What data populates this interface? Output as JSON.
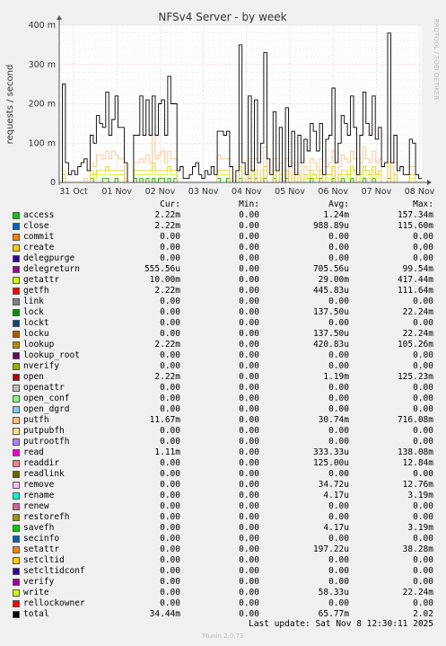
{
  "chart_data": {
    "type": "line",
    "title": "NFSv4 Server - by week",
    "ylabel": "requests / second",
    "watermark": "RRDTOOL / TOBI OETIKER",
    "y_ticks": [
      "0",
      "100 m",
      "200 m",
      "300 m",
      "400 m"
    ],
    "ylim": [
      0,
      0.4
    ],
    "x_ticks": [
      "31 Oct",
      "01 Nov",
      "02 Nov",
      "03 Nov",
      "04 Nov",
      "05 Nov",
      "06 Nov",
      "07 Nov",
      "08 Nov"
    ],
    "grid": true,
    "series": [
      {
        "name": "total",
        "color": "#000000",
        "values": [
          0,
          0.25,
          0.05,
          0.02,
          0.03,
          0.02,
          0.04,
          0.05,
          0.06,
          0.03,
          0.12,
          0.1,
          0.17,
          0.15,
          0.14,
          0.23,
          0.12,
          0.16,
          0.22,
          0.14,
          0.14,
          0.05,
          0,
          0,
          0.12,
          0.12,
          0.22,
          0.12,
          0.21,
          0.12,
          0.22,
          0.12,
          0.2,
          0.21,
          0.12,
          0.27,
          0.2,
          0.2,
          0.03,
          0.04,
          0.01,
          0.01,
          0.02,
          0.04,
          0.05,
          0.02,
          0.01,
          0.03,
          0.02,
          0.04,
          0.02,
          0.13,
          0.13,
          0.12,
          0.13,
          0.04,
          0,
          0.03,
          0.35,
          0.05,
          0.02,
          0.22,
          0.03,
          0.21,
          0.05,
          0.1,
          0.33,
          0.06,
          0.02,
          0.18,
          0.03,
          0.14,
          0,
          0.19,
          0.04,
          0.13,
          0.02,
          0.12,
          0.05,
          0.11,
          0.08,
          0.15,
          0.13,
          0.08,
          0.15,
          0.02,
          0.11,
          0.12,
          0.24,
          0.05,
          0.1,
          0.17,
          0.15,
          0.12,
          0.22,
          0.14,
          0.02,
          0.12,
          0.23,
          0.15,
          0.12,
          0.22,
          0.11,
          0.14,
          0.04,
          0.05,
          0.38,
          0.05,
          0.12,
          0.03,
          0.04,
          0.02,
          0.02,
          0.11,
          0.1,
          0.02,
          0.01
        ]
      },
      {
        "name": "putfh",
        "color": "#f8bd7d",
        "values": [
          0,
          0.03,
          0,
          0,
          0,
          0,
          0,
          0,
          0.01,
          0,
          0.05,
          0.04,
          0.07,
          0.07,
          0.06,
          0.08,
          0.06,
          0.08,
          0.07,
          0.06,
          0.06,
          0.01,
          0,
          0,
          0.05,
          0.05,
          0.06,
          0.05,
          0.07,
          0.05,
          0.12,
          0.06,
          0.07,
          0.08,
          0.05,
          0.08,
          0.06,
          0.06,
          0,
          0,
          0,
          0,
          0,
          0,
          0,
          0,
          0,
          0,
          0,
          0,
          0,
          0.07,
          0.06,
          0.06,
          0.06,
          0.01,
          0,
          0,
          0.1,
          0.01,
          0,
          0.06,
          0,
          0.06,
          0,
          0.03,
          0.09,
          0,
          0,
          0.06,
          0,
          0.05,
          0,
          0.06,
          0,
          0.05,
          0,
          0.05,
          0,
          0.04,
          0.03,
          0.06,
          0.05,
          0.03,
          0.06,
          0,
          0.04,
          0.05,
          0.08,
          0,
          0.04,
          0.07,
          0.06,
          0.05,
          0.08,
          0.06,
          0,
          0.05,
          0.09,
          0.06,
          0.05,
          0.08,
          0.05,
          0.06,
          0,
          0,
          0.11,
          0,
          0.05,
          0,
          0,
          0,
          0,
          0.04,
          0.04,
          0,
          0
        ]
      },
      {
        "name": "lookup",
        "color": "#dec503",
        "values": [
          0,
          0.02,
          0,
          0,
          0,
          0,
          0,
          0,
          0,
          0,
          0.03,
          0.02,
          0.03,
          0.03,
          0.03,
          0.04,
          0.03,
          0.03,
          0.03,
          0.03,
          0.03,
          0,
          0,
          0,
          0.03,
          0.03,
          0.03,
          0.03,
          0.03,
          0.03,
          0.05,
          0.03,
          0.03,
          0.03,
          0.03,
          0.04,
          0.03,
          0.03,
          0,
          0,
          0,
          0,
          0,
          0,
          0,
          0,
          0,
          0,
          0,
          0,
          0,
          0.03,
          0.03,
          0.03,
          0.03,
          0,
          0,
          0,
          0.04,
          0,
          0,
          0.03,
          0,
          0.03,
          0,
          0.01,
          0.04,
          0,
          0,
          0.03,
          0,
          0.02,
          0,
          0.03,
          0,
          0.02,
          0,
          0.02,
          0,
          0.02,
          0.01,
          0.03,
          0.02,
          0.01,
          0.03,
          0,
          0.02,
          0.02,
          0.04,
          0,
          0.02,
          0.03,
          0.03,
          0.02,
          0.04,
          0.03,
          0,
          0.02,
          0.04,
          0.03,
          0.02,
          0.04,
          0.02,
          0.03,
          0,
          0,
          0.05,
          0,
          0.02,
          0,
          0,
          0,
          0,
          0.02,
          0.02,
          0,
          0
        ]
      },
      {
        "name": "getattr",
        "color": "#ccff00",
        "values": [
          0,
          0.01,
          0,
          0,
          0,
          0,
          0,
          0,
          0,
          0,
          0.02,
          0.01,
          0.02,
          0.02,
          0.02,
          0.03,
          0.02,
          0.02,
          0.02,
          0.02,
          0.02,
          0,
          0,
          0,
          0.02,
          0.02,
          0.02,
          0.02,
          0.02,
          0.02,
          0.03,
          0.02,
          0.02,
          0.02,
          0.02,
          0.03,
          0.02,
          0.02,
          0,
          0,
          0,
          0,
          0,
          0,
          0,
          0,
          0,
          0,
          0,
          0,
          0,
          0.02,
          0.02,
          0.02,
          0.02,
          0,
          0,
          0,
          0.03,
          0,
          0,
          0.02,
          0,
          0.02,
          0,
          0.01,
          0.03,
          0,
          0,
          0.02,
          0,
          0.01,
          0,
          0.02,
          0,
          0.01,
          0,
          0.01,
          0,
          0.01,
          0.01,
          0.02,
          0.01,
          0.01,
          0.02,
          0,
          0.01,
          0.01,
          0.03,
          0,
          0.01,
          0.02,
          0.02,
          0.01,
          0.03,
          0.02,
          0,
          0.01,
          0.03,
          0.02,
          0.01,
          0.03,
          0.01,
          0.02,
          0,
          0,
          0.04,
          0,
          0.01,
          0,
          0,
          0,
          0,
          0.01,
          0.01,
          0,
          0
        ]
      },
      {
        "name": "access",
        "color": "#00cc00",
        "values": [
          0,
          0.01,
          0,
          0,
          0,
          0,
          0,
          0,
          0,
          0,
          0.01,
          0,
          0,
          0,
          0.01,
          0.01,
          0,
          0,
          0.01,
          0,
          0,
          0,
          0,
          0,
          0.01,
          0,
          0.01,
          0,
          0.01,
          0,
          0.01,
          0,
          0.01,
          0.01,
          0,
          0.01,
          0,
          0.01,
          0,
          0,
          0,
          0,
          0,
          0,
          0,
          0,
          0,
          0,
          0,
          0,
          0,
          0.01,
          0,
          0,
          0.01,
          0,
          0,
          0,
          0.01,
          0,
          0,
          0.01,
          0,
          0.01,
          0,
          0,
          0.01,
          0,
          0,
          0.01,
          0,
          0,
          0,
          0.01,
          0,
          0,
          0,
          0,
          0,
          0,
          0,
          0.01,
          0,
          0,
          0.01,
          0,
          0,
          0,
          0.01,
          0,
          0,
          0.01,
          0,
          0,
          0.01,
          0,
          0,
          0,
          0.01,
          0,
          0,
          0.01,
          0,
          0,
          0,
          0,
          0.01,
          0,
          0,
          0,
          0,
          0,
          0,
          0,
          0,
          0,
          0
        ]
      },
      {
        "name": "open",
        "color": "#cc0000",
        "values": [
          0,
          0.01,
          0,
          0,
          0,
          0,
          0,
          0,
          0,
          0,
          0.01,
          0,
          0,
          0,
          0.01,
          0.01,
          0,
          0,
          0.01,
          0,
          0,
          0,
          0,
          0,
          0.01,
          0,
          0.01,
          0,
          0.01,
          0,
          0.01,
          0,
          0.01,
          0.01,
          0,
          0.01,
          0,
          0.01,
          0,
          0,
          0,
          0,
          0,
          0,
          0,
          0,
          0,
          0,
          0,
          0,
          0,
          0.01,
          0,
          0,
          0.01,
          0,
          0,
          0,
          0.01,
          0,
          0,
          0.01,
          0,
          0.01,
          0,
          0,
          0.01,
          0,
          0,
          0.01,
          0,
          0,
          0,
          0.01,
          0,
          0,
          0,
          0,
          0,
          0,
          0,
          0.01,
          0,
          0,
          0.01,
          0,
          0,
          0,
          0.01,
          0,
          0,
          0.01,
          0,
          0,
          0.01,
          0,
          0,
          0,
          0.01,
          0,
          0,
          0.01,
          0,
          0,
          0,
          0,
          0.01,
          0,
          0,
          0,
          0,
          0,
          0,
          0,
          0,
          0,
          0
        ]
      }
    ]
  },
  "legend": {
    "headers": {
      "cur": "Cur:",
      "min": "Min:",
      "avg": "Avg:",
      "max": "Max:"
    },
    "rows": [
      {
        "name": "access",
        "color": "#00cc00",
        "cur": "2.22m",
        "min": "0.00",
        "avg": "1.24m",
        "max": "157.34m"
      },
      {
        "name": "close",
        "color": "#0066b3",
        "cur": "2.22m",
        "min": "0.00",
        "avg": "988.89u",
        "max": "115.60m"
      },
      {
        "name": "commit",
        "color": "#ff8000",
        "cur": "0.00",
        "min": "0.00",
        "avg": "0.00",
        "max": "0.00"
      },
      {
        "name": "create",
        "color": "#ffcc00",
        "cur": "0.00",
        "min": "0.00",
        "avg": "0.00",
        "max": "0.00"
      },
      {
        "name": "delegpurge",
        "color": "#330099",
        "cur": "0.00",
        "min": "0.00",
        "avg": "0.00",
        "max": "0.00"
      },
      {
        "name": "delegreturn",
        "color": "#990099",
        "cur": "555.56u",
        "min": "0.00",
        "avg": "705.56u",
        "max": "99.54m"
      },
      {
        "name": "getattr",
        "color": "#ccff00",
        "cur": "10.00m",
        "min": "0.00",
        "avg": "29.00m",
        "max": "417.44m"
      },
      {
        "name": "getfh",
        "color": "#ff0000",
        "cur": "2.22m",
        "min": "0.00",
        "avg": "445.83u",
        "max": "111.64m"
      },
      {
        "name": "link",
        "color": "#808080",
        "cur": "0.00",
        "min": "0.00",
        "avg": "0.00",
        "max": "0.00"
      },
      {
        "name": "lock",
        "color": "#008f00",
        "cur": "0.00",
        "min": "0.00",
        "avg": "137.50u",
        "max": "22.24m"
      },
      {
        "name": "lockt",
        "color": "#00487d",
        "cur": "0.00",
        "min": "0.00",
        "avg": "0.00",
        "max": "0.00"
      },
      {
        "name": "locku",
        "color": "#b35a00",
        "cur": "0.00",
        "min": "0.00",
        "avg": "137.50u",
        "max": "22.24m"
      },
      {
        "name": "lookup",
        "color": "#b38f00",
        "cur": "2.22m",
        "min": "0.00",
        "avg": "420.83u",
        "max": "105.26m"
      },
      {
        "name": "lookup_root",
        "color": "#6b006b",
        "cur": "0.00",
        "min": "0.00",
        "avg": "0.00",
        "max": "0.00"
      },
      {
        "name": "nverify",
        "color": "#8fb300",
        "cur": "0.00",
        "min": "0.00",
        "avg": "0.00",
        "max": "0.00"
      },
      {
        "name": "open",
        "color": "#b30000",
        "cur": "2.22m",
        "min": "0.00",
        "avg": "1.19m",
        "max": "125.23m"
      },
      {
        "name": "openattr",
        "color": "#bebebe",
        "cur": "0.00",
        "min": "0.00",
        "avg": "0.00",
        "max": "0.00"
      },
      {
        "name": "open_conf",
        "color": "#80ff80",
        "cur": "0.00",
        "min": "0.00",
        "avg": "0.00",
        "max": "0.00"
      },
      {
        "name": "open_dgrd",
        "color": "#80c9ff",
        "cur": "0.00",
        "min": "0.00",
        "avg": "0.00",
        "max": "0.00"
      },
      {
        "name": "putfh",
        "color": "#ffc080",
        "cur": "11.67m",
        "min": "0.00",
        "avg": "30.74m",
        "max": "716.08m"
      },
      {
        "name": "putpubfh",
        "color": "#ffe680",
        "cur": "0.00",
        "min": "0.00",
        "avg": "0.00",
        "max": "0.00"
      },
      {
        "name": "putrootfh",
        "color": "#aa80ff",
        "cur": "0.00",
        "min": "0.00",
        "avg": "0.00",
        "max": "0.00"
      },
      {
        "name": "read",
        "color": "#ee00cc",
        "cur": "1.11m",
        "min": "0.00",
        "avg": "333.33u",
        "max": "138.08m"
      },
      {
        "name": "readdir",
        "color": "#ff8080",
        "cur": "0.00",
        "min": "0.00",
        "avg": "125.00u",
        "max": "12.84m"
      },
      {
        "name": "readlink",
        "color": "#666600",
        "cur": "0.00",
        "min": "0.00",
        "avg": "0.00",
        "max": "0.00"
      },
      {
        "name": "remove",
        "color": "#ffbfff",
        "cur": "0.00",
        "min": "0.00",
        "avg": "34.72u",
        "max": "12.76m"
      },
      {
        "name": "rename",
        "color": "#00ffcc",
        "cur": "0.00",
        "min": "0.00",
        "avg": "4.17u",
        "max": "3.19m"
      },
      {
        "name": "renew",
        "color": "#cc6699",
        "cur": "0.00",
        "min": "0.00",
        "avg": "0.00",
        "max": "0.00"
      },
      {
        "name": "restorefh",
        "color": "#999900",
        "cur": "0.00",
        "min": "0.00",
        "avg": "0.00",
        "max": "0.00"
      },
      {
        "name": "savefh",
        "color": "#00cc00",
        "cur": "0.00",
        "min": "0.00",
        "avg": "4.17u",
        "max": "3.19m"
      },
      {
        "name": "secinfo",
        "color": "#0066b3",
        "cur": "0.00",
        "min": "0.00",
        "avg": "0.00",
        "max": "0.00"
      },
      {
        "name": "setattr",
        "color": "#ff8000",
        "cur": "0.00",
        "min": "0.00",
        "avg": "197.22u",
        "max": "38.28m"
      },
      {
        "name": "setcltid",
        "color": "#ffcc00",
        "cur": "0.00",
        "min": "0.00",
        "avg": "0.00",
        "max": "0.00"
      },
      {
        "name": "setcltidconf",
        "color": "#330099",
        "cur": "0.00",
        "min": "0.00",
        "avg": "0.00",
        "max": "0.00"
      },
      {
        "name": "verify",
        "color": "#990099",
        "cur": "0.00",
        "min": "0.00",
        "avg": "0.00",
        "max": "0.00"
      },
      {
        "name": "write",
        "color": "#ccff00",
        "cur": "0.00",
        "min": "0.00",
        "avg": "58.33u",
        "max": "22.24m"
      },
      {
        "name": "rellockowner",
        "color": "#ff0000",
        "cur": "0.00",
        "min": "0.00",
        "avg": "0.00",
        "max": "0.00"
      },
      {
        "name": "total",
        "color": "#000000",
        "cur": "34.44m",
        "min": "0.00",
        "avg": "65.77m",
        "max": "2.02"
      }
    ]
  },
  "footer": {
    "last_update": "Last update:  Sat Nov  8 12:30:11 2025",
    "munin_version": "Munin 2.0.73"
  }
}
